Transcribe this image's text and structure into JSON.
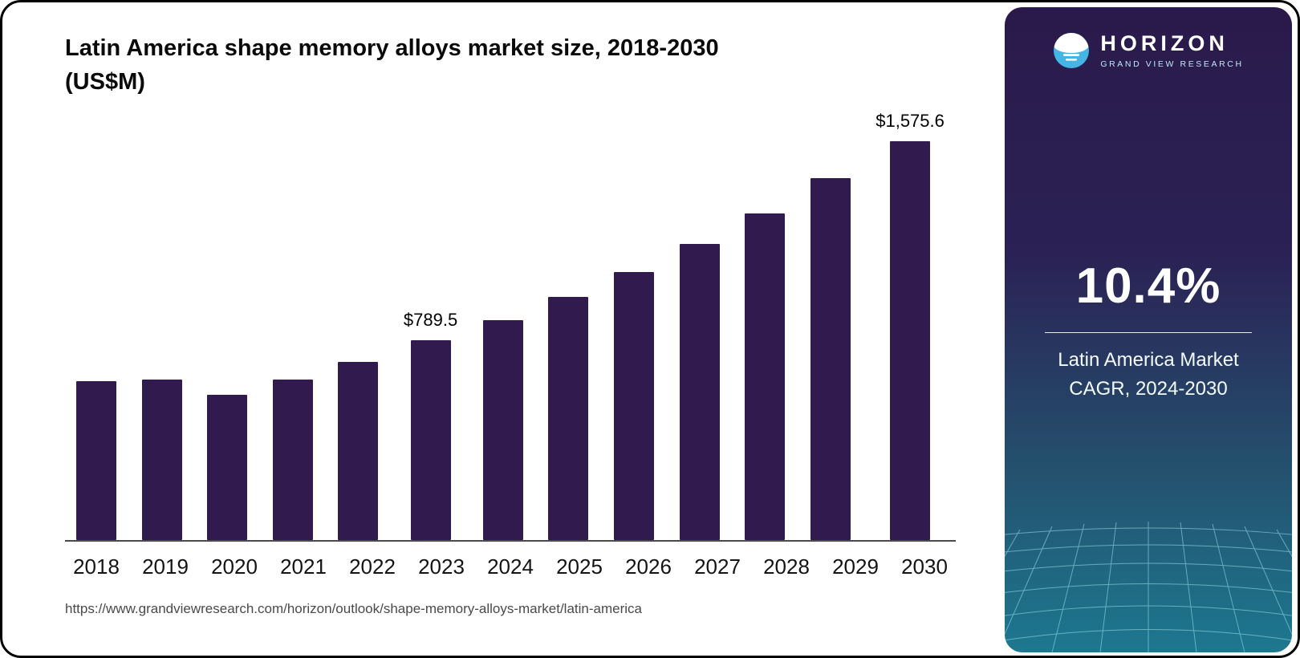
{
  "chart_data": {
    "type": "bar",
    "title": "Latin America shape memory alloys market size, 2018-2030 (US$M)",
    "categories": [
      "2018",
      "2019",
      "2020",
      "2021",
      "2022",
      "2023",
      "2024",
      "2025",
      "2026",
      "2027",
      "2028",
      "2029",
      "2030"
    ],
    "values": [
      627,
      636,
      573,
      636,
      706,
      789.5,
      870,
      960,
      1060,
      1170,
      1292,
      1430,
      1575.6
    ],
    "data_labels": [
      {
        "index": 5,
        "text": "$789.5"
      },
      {
        "index": 12,
        "text": "$1,575.6"
      }
    ],
    "ylim": [
      0,
      1650
    ],
    "xlabel": "",
    "ylabel": "US$M",
    "bar_color": "#301a4e",
    "grid": false,
    "legend": false
  },
  "header": {
    "title_line1": "Latin America shape memory alloys market size, 2018-2030",
    "title_line2": "(US$M)"
  },
  "footer": {
    "source_url": "https://www.grandviewresearch.com/horizon/outlook/shape-memory-alloys-market/latin-america"
  },
  "sidebar": {
    "logo": {
      "name": "HORIZON",
      "tagline": "GRAND VIEW RESEARCH"
    },
    "stat": {
      "value": "10.4%",
      "label_line1": "Latin America Market",
      "label_line2": "CAGR, 2024-2030"
    },
    "colors": {
      "gradient_top": "#2a1a4b",
      "gradient_bottom": "#1d7990",
      "logo_blue": "#45b5e5"
    }
  }
}
